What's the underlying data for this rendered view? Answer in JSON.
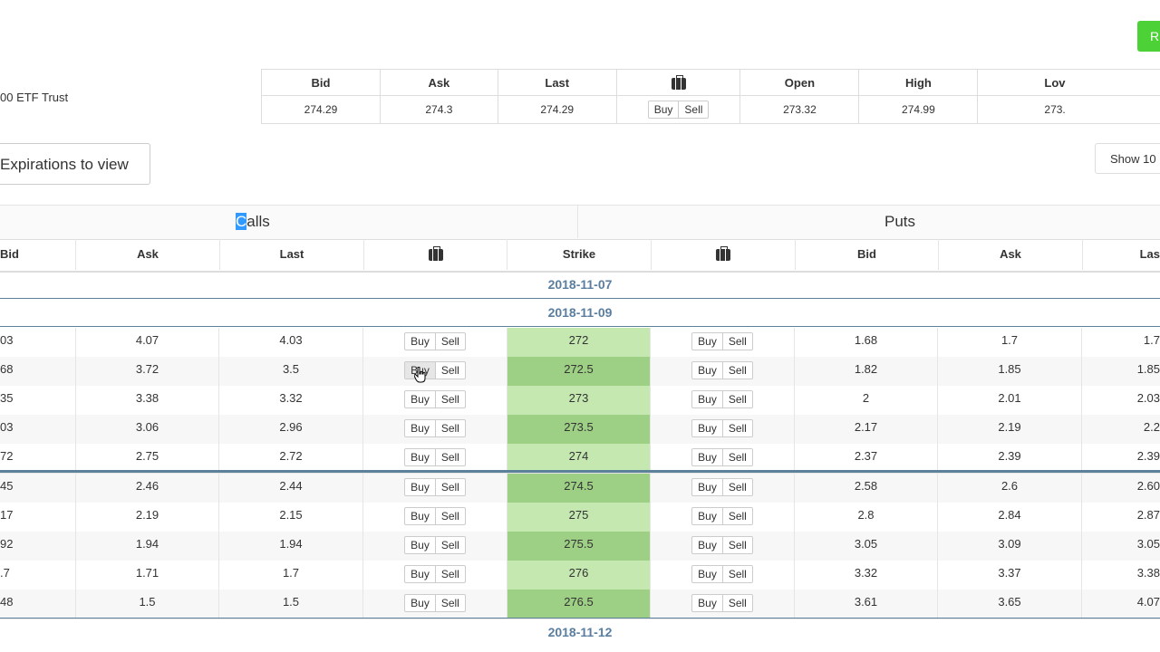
{
  "header_button": "R",
  "symbol_name": "00 ETF Trust",
  "quote": {
    "headers": [
      "Bid",
      "Ask",
      "Last",
      "",
      "Open",
      "High",
      "Lov"
    ],
    "values": {
      "bid": "274.29",
      "ask": "274.3",
      "last": "274.29",
      "open": "273.32",
      "high": "274.99",
      "low": "273."
    },
    "buy_label": "Buy",
    "sell_label": "Sell"
  },
  "expirations_button": "Expirations to view",
  "show_button": "Show 10",
  "calls_first": "C",
  "calls_rest": "alls",
  "puts_label": "Puts",
  "columns": {
    "bid_left": "Bid",
    "ask": "Ask",
    "last": "Last",
    "strike": "Strike",
    "bid_right": "Bid",
    "ask_right": "Ask",
    "last_right": "Las"
  },
  "dates": [
    "2018-11-07",
    "2018-11-09",
    "2018-11-12"
  ],
  "rows": [
    {
      "cbid": "03",
      "cask": "4.07",
      "clast": "4.03",
      "strike": "272",
      "pbid": "1.68",
      "pask": "1.7",
      "plast": "1.7"
    },
    {
      "cbid": "68",
      "cask": "3.72",
      "clast": "3.5",
      "strike": "272.5",
      "pbid": "1.82",
      "pask": "1.85",
      "plast": "1.85"
    },
    {
      "cbid": "35",
      "cask": "3.38",
      "clast": "3.32",
      "strike": "273",
      "pbid": "2",
      "pask": "2.01",
      "plast": "2.03"
    },
    {
      "cbid": "03",
      "cask": "3.06",
      "clast": "2.96",
      "strike": "273.5",
      "pbid": "2.17",
      "pask": "2.19",
      "plast": "2.2"
    },
    {
      "cbid": "72",
      "cask": "2.75",
      "clast": "2.72",
      "strike": "274",
      "pbid": "2.37",
      "pask": "2.39",
      "plast": "2.39"
    },
    {
      "cbid": "45",
      "cask": "2.46",
      "clast": "2.44",
      "strike": "274.5",
      "pbid": "2.58",
      "pask": "2.6",
      "plast": "2.60"
    },
    {
      "cbid": "17",
      "cask": "2.19",
      "clast": "2.15",
      "strike": "275",
      "pbid": "2.8",
      "pask": "2.84",
      "plast": "2.87"
    },
    {
      "cbid": "92",
      "cask": "1.94",
      "clast": "1.94",
      "strike": "275.5",
      "pbid": "3.05",
      "pask": "3.09",
      "plast": "3.05"
    },
    {
      "cbid": ".7",
      "cask": "1.71",
      "clast": "1.7",
      "strike": "276",
      "pbid": "3.32",
      "pask": "3.37",
      "plast": "3.38"
    },
    {
      "cbid": "48",
      "cask": "1.5",
      "clast": "1.5",
      "strike": "276.5",
      "pbid": "3.61",
      "pask": "3.65",
      "plast": "4.07"
    }
  ],
  "icons": {
    "portfolio": "briefcase-icon",
    "cursor": "hand-pointer-icon"
  }
}
